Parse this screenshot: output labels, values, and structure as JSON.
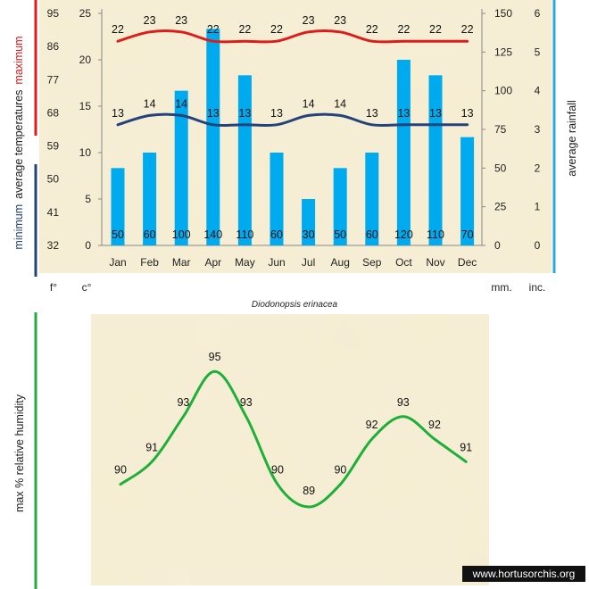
{
  "chart_data": [
    {
      "type": "bar+line",
      "title": "Diodonopsis erinacea",
      "categories": [
        "Jan",
        "Feb",
        "Mar",
        "Apr",
        "May",
        "Jun",
        "Jul",
        "Aug",
        "Sep",
        "Oct",
        "Nov",
        "Dec"
      ],
      "series": [
        {
          "name": "maximum",
          "kind": "line",
          "axis": "temperature_c",
          "values": [
            22,
            23,
            23,
            22,
            22,
            22,
            23,
            23,
            22,
            22,
            22,
            22
          ]
        },
        {
          "name": "minimum",
          "kind": "line",
          "axis": "temperature_c",
          "values": [
            13,
            14,
            14,
            13,
            13,
            13,
            14,
            14,
            13,
            13,
            13,
            13
          ]
        },
        {
          "name": "average rainfall",
          "kind": "bar",
          "axis": "rainfall_mm",
          "values": [
            50,
            60,
            100,
            140,
            110,
            60,
            30,
            50,
            60,
            120,
            110,
            70
          ]
        }
      ],
      "axes": {
        "temp_f": {
          "unit": "f°",
          "ticks": [
            32,
            41,
            50,
            59,
            68,
            77,
            86,
            95
          ]
        },
        "temp_c": {
          "unit": "c°",
          "ticks": [
            0,
            5,
            10,
            15,
            20,
            25
          ],
          "range": [
            0,
            25
          ]
        },
        "rain_mm": {
          "unit": "mm.",
          "ticks": [
            0,
            25,
            50,
            75,
            100,
            125,
            150
          ],
          "range": [
            0,
            150
          ]
        },
        "rain_in": {
          "unit": "inc.",
          "ticks": [
            0,
            1,
            2,
            3,
            4,
            5,
            6
          ]
        }
      },
      "ylabel_left_top": {
        "prefix": "average  temperatures",
        "highlight": "maximum"
      },
      "ylabel_left_bottom": {
        "highlight": "minimum"
      },
      "ylabel_right": "average rainfall",
      "colors": {
        "max": "#dd1c1c",
        "min": "#24437a",
        "bars": "#00aaee",
        "rain_axis": "#29a9e1"
      }
    },
    {
      "type": "line",
      "categories": [
        "Jan",
        "Feb",
        "Mar",
        "Apr",
        "May",
        "Jun",
        "Jul",
        "Aug",
        "Sep",
        "Oct",
        "Nov",
        "Dec"
      ],
      "series": [
        {
          "name": "max % relative humidity",
          "values": [
            90,
            91,
            93,
            95,
            93,
            90,
            89,
            90,
            92,
            93,
            92,
            91
          ]
        }
      ],
      "ylabel": "max %  relative humidity",
      "colors": {
        "line": "#1db039",
        "axis": "#22aa44"
      }
    }
  ],
  "watermark": "www.hortusorchis.org"
}
